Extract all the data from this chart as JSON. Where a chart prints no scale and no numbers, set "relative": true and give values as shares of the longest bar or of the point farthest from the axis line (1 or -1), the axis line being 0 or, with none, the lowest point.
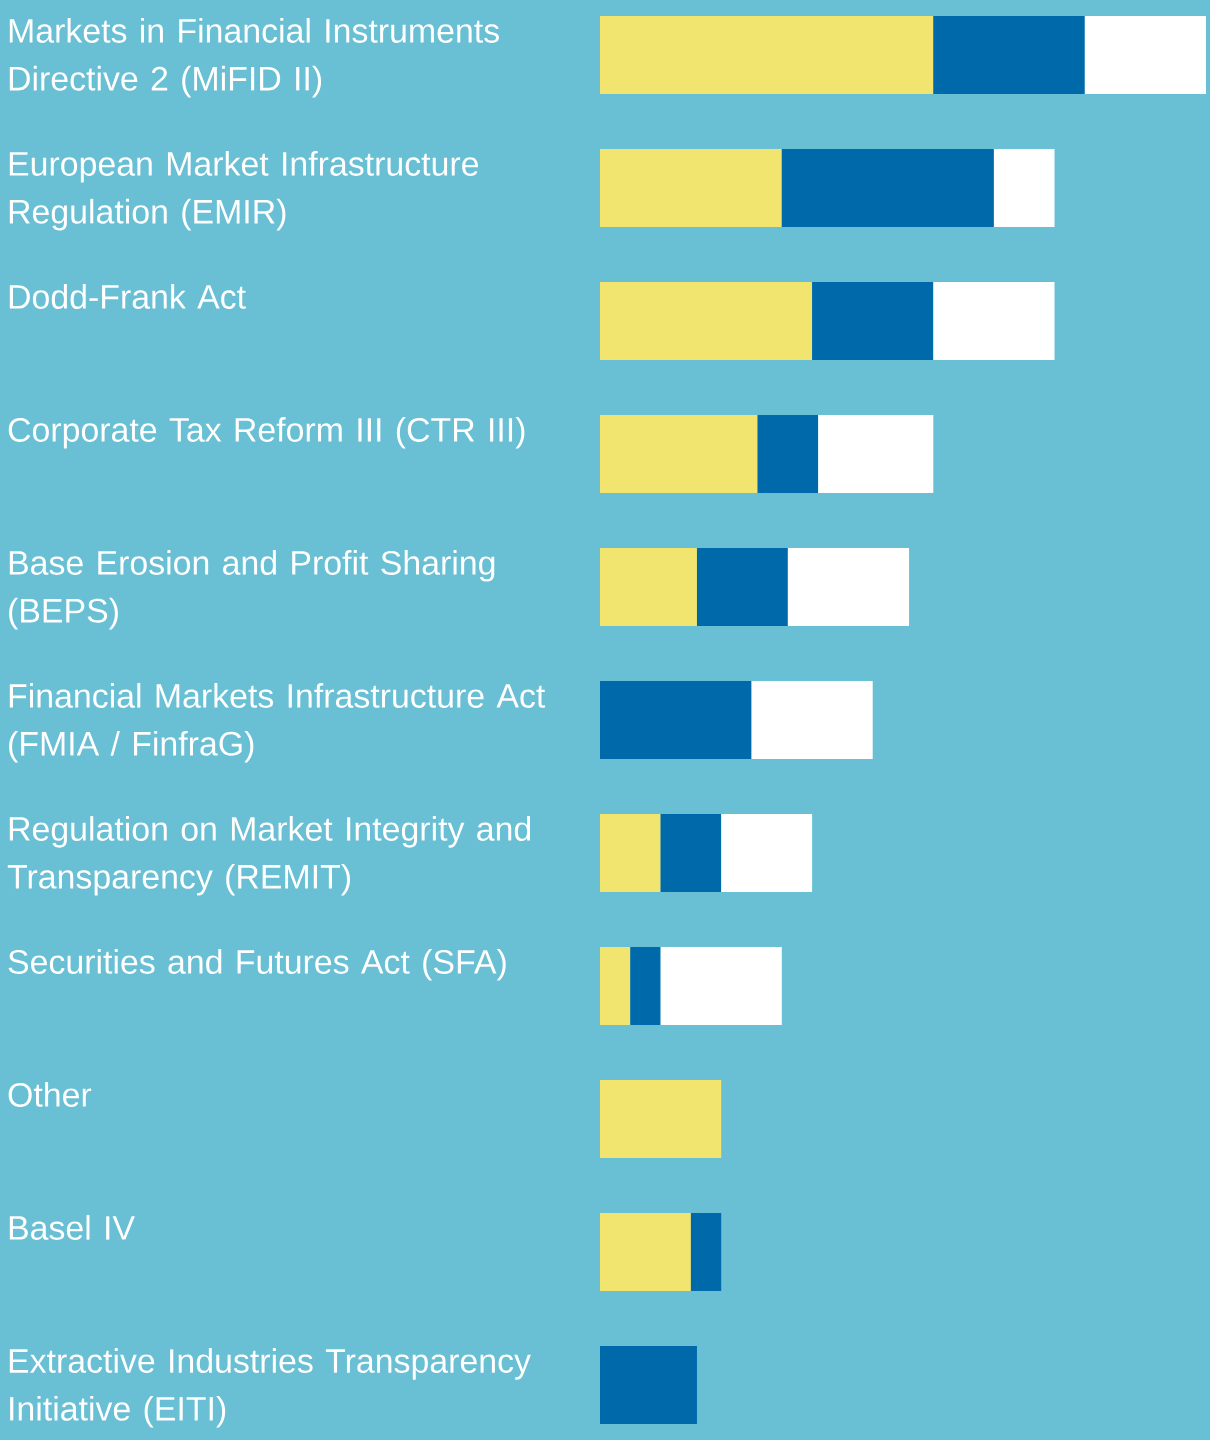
{
  "chart_data": {
    "type": "bar",
    "orientation": "horizontal",
    "stacked": true,
    "relative": true,
    "categories": [
      "Markets in Financial Instruments Directive 2 (MiFID II)",
      "European Market Infrastructure Regulation (EMIR)",
      "Dodd-Frank Act",
      "Corporate Tax Reform III (CTR III)",
      "Base Erosion and Profit Sharing (BEPS)",
      "Financial Markets Infrastructure Act (FMIA / FinfraG)",
      "Regulation on Market Integrity and Transparency (REMIT)",
      "Securities and Futures Act (SFA)",
      "Other",
      "Basel IV",
      "Extractive Industries Transparency Initiative (EITI)"
    ],
    "series": [
      {
        "color": "#f1e570",
        "values": [
          0.55,
          0.3,
          0.35,
          0.26,
          0.16,
          null,
          0.1,
          0.05,
          0.2,
          0.15,
          null
        ]
      },
      {
        "color": "#0069aa",
        "values": [
          0.25,
          0.35,
          0.2,
          0.1,
          0.15,
          0.25,
          0.1,
          0.05,
          null,
          0.05,
          0.16
        ]
      },
      {
        "color": "#ffffff",
        "values": [
          0.2,
          0.1,
          0.2,
          0.19,
          0.2,
          0.2,
          0.15,
          0.2,
          null,
          null,
          null
        ]
      }
    ]
  }
}
